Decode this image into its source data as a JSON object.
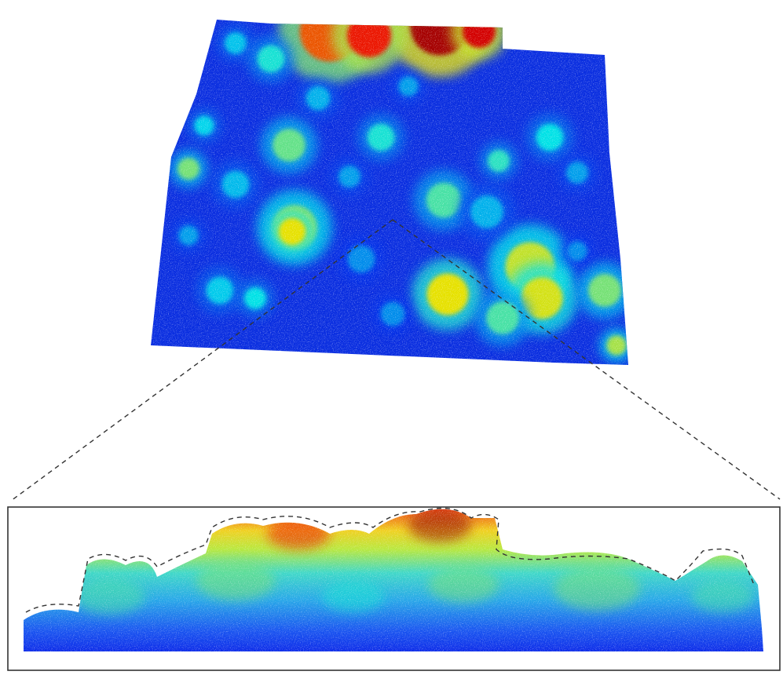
{
  "figure": {
    "content": "lidar-point-cloud",
    "colormap": "jet",
    "colors": {
      "low": "#0a1ee6",
      "mid": "#40d8c8",
      "high": "#e82010",
      "outline": "#222222",
      "background": "#ffffff"
    },
    "panels": [
      "top-view-plot",
      "side-profile-inset"
    ],
    "profile_outline_style": "dashed",
    "connector_style": "dashed"
  }
}
